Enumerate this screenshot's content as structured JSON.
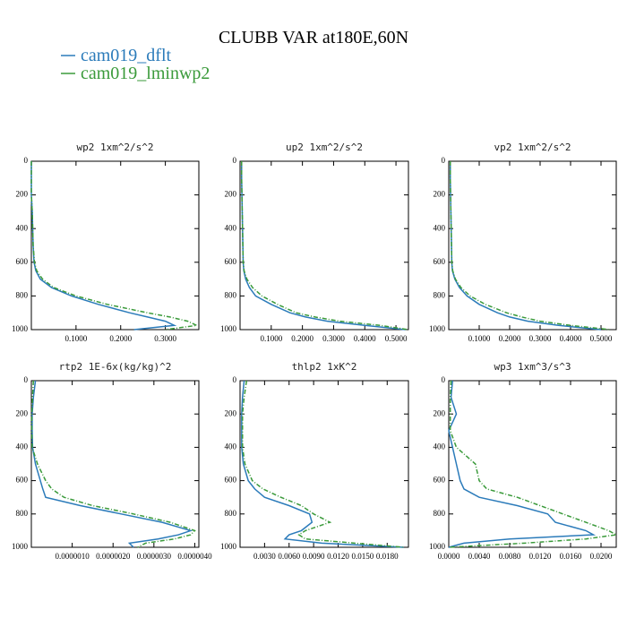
{
  "title": "CLUBB VAR at180E,60N",
  "chart_data": [
    {
      "type": "line",
      "title": "wp2  1xm^2/s^2",
      "xlim": [
        0,
        0.375
      ],
      "xticks": [
        {
          "value": 0.1,
          "label": "0.1000"
        },
        {
          "value": 0.2,
          "label": "0.2000"
        },
        {
          "value": 0.3,
          "label": "0.3000"
        }
      ],
      "ylim": [
        0,
        1000
      ],
      "yticks": [
        0,
        200,
        400,
        600,
        800,
        1000
      ],
      "y_inverted": true,
      "y": [
        0,
        100,
        200,
        300,
        400,
        500,
        600,
        650,
        700,
        750,
        800,
        850,
        900,
        925,
        950,
        975,
        1000
      ],
      "series": [
        {
          "name": "cam019_dflt",
          "color": "#2b7bba",
          "linestyle": "solid",
          "values": [
            0,
            0,
            0,
            0.002,
            0.003,
            0.004,
            0.006,
            0.01,
            0.02,
            0.045,
            0.09,
            0.15,
            0.22,
            0.26,
            0.3,
            0.32,
            0.23
          ]
        },
        {
          "name": "cam019_lminwp2",
          "color": "#3a9a3a",
          "linestyle": "dashed",
          "values": [
            0,
            0,
            0,
            0.002,
            0.003,
            0.004,
            0.007,
            0.012,
            0.025,
            0.05,
            0.1,
            0.17,
            0.26,
            0.31,
            0.35,
            0.37,
            0.3
          ]
        }
      ]
    },
    {
      "type": "line",
      "title": "up2  1xm^2/s^2",
      "xlim": [
        0,
        0.54
      ],
      "xticks": [
        {
          "value": 0.1,
          "label": "0.1000"
        },
        {
          "value": 0.2,
          "label": "0.2000"
        },
        {
          "value": 0.3,
          "label": "0.3000"
        },
        {
          "value": 0.4,
          "label": "0.4000"
        },
        {
          "value": 0.5,
          "label": "0.5000"
        }
      ],
      "ylim": [
        0,
        1000
      ],
      "yticks": [
        0,
        200,
        400,
        600,
        800,
        1000
      ],
      "y_inverted": true,
      "y": [
        0,
        100,
        200,
        300,
        400,
        500,
        600,
        650,
        700,
        750,
        800,
        850,
        900,
        925,
        950,
        975,
        1000
      ],
      "series": [
        {
          "name": "cam019_dflt",
          "color": "#2b7bba",
          "linestyle": "solid",
          "values": [
            0.005,
            0.005,
            0.006,
            0.007,
            0.008,
            0.009,
            0.01,
            0.012,
            0.018,
            0.03,
            0.05,
            0.1,
            0.16,
            0.21,
            0.28,
            0.4,
            0.53
          ]
        },
        {
          "name": "cam019_lminwp2",
          "color": "#3a9a3a",
          "linestyle": "dashed",
          "values": [
            0.005,
            0.005,
            0.006,
            0.007,
            0.008,
            0.009,
            0.01,
            0.013,
            0.022,
            0.04,
            0.07,
            0.12,
            0.18,
            0.24,
            0.32,
            0.45,
            0.54
          ]
        }
      ]
    },
    {
      "type": "line",
      "title": "vp2  1xm^2/s^2",
      "xlim": [
        0,
        0.55
      ],
      "xticks": [
        {
          "value": 0.1,
          "label": "0.1000"
        },
        {
          "value": 0.2,
          "label": "0.2000"
        },
        {
          "value": 0.3,
          "label": "0.3000"
        },
        {
          "value": 0.4,
          "label": "0.4000"
        },
        {
          "value": 0.5,
          "label": "0.5000"
        }
      ],
      "ylim": [
        0,
        1000
      ],
      "yticks": [
        0,
        200,
        400,
        600,
        800,
        1000
      ],
      "y_inverted": true,
      "y": [
        0,
        100,
        200,
        300,
        400,
        500,
        600,
        650,
        700,
        750,
        800,
        850,
        900,
        925,
        950,
        975,
        1000
      ],
      "series": [
        {
          "name": "cam019_dflt",
          "color": "#2b7bba",
          "linestyle": "solid",
          "values": [
            0.005,
            0.005,
            0.006,
            0.007,
            0.008,
            0.009,
            0.01,
            0.012,
            0.02,
            0.035,
            0.06,
            0.1,
            0.16,
            0.2,
            0.26,
            0.36,
            0.5
          ]
        },
        {
          "name": "cam019_lminwp2",
          "color": "#3a9a3a",
          "linestyle": "dashed",
          "values": [
            0.005,
            0.005,
            0.006,
            0.007,
            0.008,
            0.009,
            0.01,
            0.013,
            0.022,
            0.04,
            0.07,
            0.12,
            0.19,
            0.24,
            0.3,
            0.4,
            0.53
          ]
        }
      ]
    },
    {
      "type": "line",
      "title": "rtp2  1E-6x(kg/kg)^2",
      "xlim": [
        0,
        4.1e-06
      ],
      "xticks": [
        {
          "value": 1e-06,
          "label": "0.0000010"
        },
        {
          "value": 2e-06,
          "label": "0.0000020"
        },
        {
          "value": 3e-06,
          "label": "0.0000030"
        },
        {
          "value": 4e-06,
          "label": "0.0000040"
        }
      ],
      "ylim": [
        0,
        1000
      ],
      "yticks": [
        0,
        200,
        400,
        600,
        800,
        1000
      ],
      "y_inverted": true,
      "y": [
        0,
        100,
        200,
        300,
        400,
        500,
        600,
        650,
        700,
        750,
        800,
        850,
        900,
        925,
        950,
        975,
        1000
      ],
      "series": [
        {
          "name": "cam019_dflt",
          "color": "#2b7bba",
          "linestyle": "solid",
          "values": [
            1e-07,
            5e-08,
            2e-08,
            2e-08,
            3e-08,
            1e-07,
            2.2e-07,
            2.8e-07,
            3.5e-07,
            1.2e-06,
            2.2e-06,
            3.2e-06,
            3.9e-06,
            3.6e-06,
            3.1e-06,
            2.4e-06,
            2.5e-06
          ]
        },
        {
          "name": "cam019_lminwp2",
          "color": "#3a9a3a",
          "linestyle": "dashed",
          "values": [
            5e-08,
            3e-08,
            1e-08,
            1e-08,
            2e-08,
            1.5e-07,
            3.5e-07,
            5e-07,
            8e-07,
            1.5e-06,
            2.5e-06,
            3.4e-06,
            4e-06,
            3.9e-06,
            3.5e-06,
            2.8e-06,
            2.6e-06
          ]
        }
      ]
    },
    {
      "type": "line",
      "title": "thlp2  1xK^2",
      "xlim": [
        0,
        0.0206
      ],
      "xticks": [
        {
          "value": 0.003,
          "label": "0.0030"
        },
        {
          "value": 0.006,
          "label": "0.0060"
        },
        {
          "value": 0.009,
          "label": "0.0090"
        },
        {
          "value": 0.012,
          "label": "0.0120"
        },
        {
          "value": 0.015,
          "label": "0.0150"
        },
        {
          "value": 0.018,
          "label": "0.0180"
        }
      ],
      "ylim": [
        0,
        1000
      ],
      "yticks": [
        0,
        200,
        400,
        600,
        800,
        1000
      ],
      "y_inverted": true,
      "y": [
        0,
        100,
        200,
        300,
        400,
        500,
        600,
        650,
        700,
        750,
        800,
        850,
        900,
        925,
        950,
        975,
        1000
      ],
      "series": [
        {
          "name": "cam019_dflt",
          "color": "#2b7bba",
          "linestyle": "solid",
          "values": [
            0.0005,
            0.0003,
            0.0002,
            0.0002,
            0.0002,
            0.0004,
            0.001,
            0.0018,
            0.003,
            0.006,
            0.0085,
            0.0088,
            0.0075,
            0.006,
            0.0055,
            0.01,
            0.02
          ]
        },
        {
          "name": "cam019_lminwp2",
          "color": "#3a9a3a",
          "linestyle": "dashed",
          "values": [
            0.0008,
            0.0005,
            0.0003,
            0.0003,
            0.0003,
            0.0006,
            0.0015,
            0.0028,
            0.005,
            0.0075,
            0.009,
            0.011,
            0.008,
            0.0072,
            0.008,
            0.014,
            0.02
          ]
        }
      ]
    },
    {
      "type": "line",
      "title": "wp3  1xm^3/s^3",
      "xlim": [
        0,
        0.022
      ],
      "xticks": [
        {
          "value": 0,
          "label": "0.0000"
        },
        {
          "value": 0.004,
          "label": "0.0040"
        },
        {
          "value": 0.008,
          "label": "0.0080"
        },
        {
          "value": 0.012,
          "label": "0.0120"
        },
        {
          "value": 0.016,
          "label": "0.0160"
        },
        {
          "value": 0.02,
          "label": "0.0200"
        }
      ],
      "ylim": [
        0,
        1000
      ],
      "yticks": [
        0,
        200,
        400,
        600,
        800,
        1000
      ],
      "y_inverted": true,
      "y": [
        0,
        100,
        200,
        300,
        400,
        500,
        600,
        650,
        700,
        750,
        800,
        850,
        900,
        925,
        950,
        975,
        1000
      ],
      "series": [
        {
          "name": "cam019_dflt",
          "color": "#2b7bba",
          "linestyle": "solid",
          "values": [
            0.0005,
            0.0003,
            0.001,
            0,
            0.0005,
            0.001,
            0.0015,
            0.002,
            0.004,
            0.009,
            0.013,
            0.014,
            0.018,
            0.019,
            0.008,
            0.002,
            0
          ]
        },
        {
          "name": "cam019_lminwp2",
          "color": "#3a9a3a",
          "linestyle": "dashed",
          "values": [
            0.0003,
            0.0002,
            0.0002,
            0.0002,
            0.001,
            0.0035,
            0.004,
            0.005,
            0.009,
            0.012,
            0.015,
            0.018,
            0.021,
            0.022,
            0.018,
            0.01,
            0
          ]
        }
      ]
    }
  ]
}
